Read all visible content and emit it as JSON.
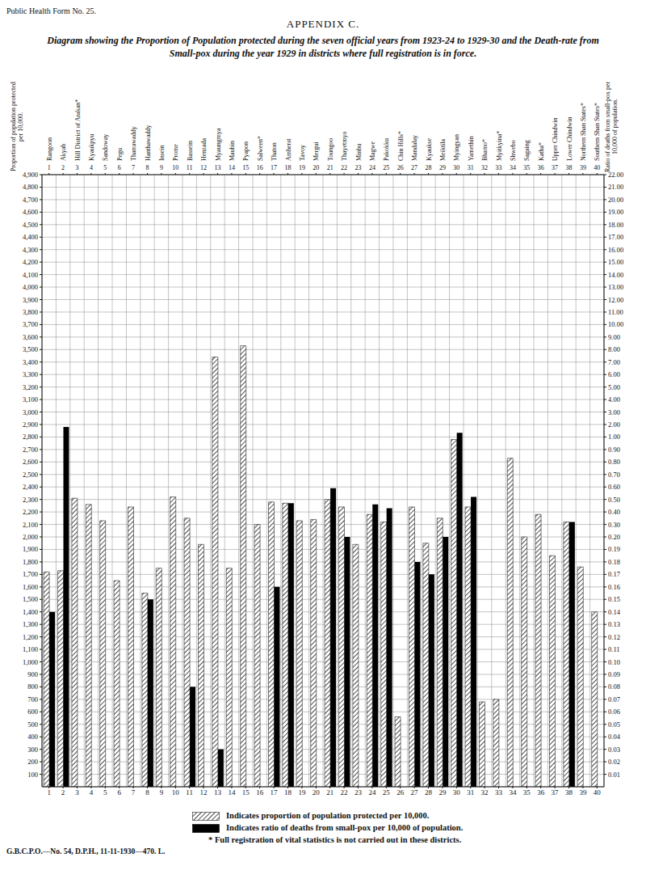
{
  "header": "Public Health Form No. 25.",
  "appendix": "APPENDIX C.",
  "chart_data": {
    "type": "bar",
    "title": "Diagram showing the Proportion of Population protected during the seven official years from 1923-24 to 1929-30 and the Death-rate from Small-pox during the year 1929 in districts where full registration is in force.",
    "categories": [
      "Rangoon",
      "Akyab",
      "Hill District of Arakan*",
      "Kyaukpyu",
      "Sandoway",
      "Pegu",
      "Tharrawaddy",
      "Hanthawaddy",
      "Insein",
      "Prome",
      "Bassein",
      "Henzada",
      "Myaungmya",
      "Maubin",
      "Pyapon",
      "Salween*",
      "Thaton",
      "Amherst",
      "Tavoy",
      "Mergui",
      "Toungoo",
      "Thayetmyo",
      "Minbu",
      "Magwe",
      "Pakokku",
      "Chin Hills*",
      "Mandalay",
      "Kyaukse",
      "Meiktila",
      "Myingyan",
      "Yamethin",
      "Bhamo*",
      "Myitkyina*",
      "Shwebo",
      "Sagaing",
      "Katha*",
      "Upper Chindwin",
      "Lower Chindwin",
      "Northern Shan States*",
      "Southern Shan States*"
    ],
    "column_numbers": [
      1,
      2,
      3,
      4,
      5,
      6,
      7,
      8,
      9,
      10,
      11,
      12,
      13,
      14,
      15,
      16,
      17,
      18,
      19,
      20,
      21,
      22,
      23,
      24,
      25,
      26,
      27,
      28,
      29,
      30,
      31,
      32,
      33,
      34,
      35,
      36,
      37,
      38,
      39,
      40
    ],
    "series": [
      {
        "name": "Indicates proportion of population protected per 10,000.",
        "color": "#222222",
        "values": [
          1720,
          1730,
          2310,
          2260,
          2130,
          1650,
          2240,
          1550,
          1750,
          2320,
          2150,
          1940,
          3440,
          1750,
          3530,
          2100,
          2280,
          2270,
          2130,
          2140,
          2300,
          2240,
          1940,
          2180,
          2120,
          560,
          2240,
          1950,
          2150,
          2780,
          2240,
          680,
          700,
          2630,
          2000,
          2180,
          1850,
          2120,
          1760,
          1400
        ]
      },
      {
        "name": "Indicates ratio of deaths from small-pox per 10,000 of population.",
        "color": "#000000",
        "axis": "y2",
        "values": [
          0.14,
          1.8,
          0,
          0,
          0,
          0,
          0,
          0.15,
          0,
          0,
          0.08,
          0,
          0.03,
          0,
          0,
          0,
          0.16,
          0.47,
          0,
          0,
          0.59,
          0.2,
          0,
          0.46,
          0.43,
          0,
          0.18,
          0.17,
          0.2,
          1.34,
          0.52,
          0,
          0,
          0,
          0,
          0,
          0,
          0.32,
          0,
          0
        ]
      }
    ],
    "y_label": "Proportion of population protected per 10,000.",
    "y2_label": "Ratio of deaths from small-pox per 10,000 of population.",
    "ylim": [
      0,
      4900
    ],
    "yticks": [
      100,
      200,
      300,
      400,
      500,
      600,
      700,
      800,
      900,
      {
        "value": 1000,
        "label": "1,000"
      },
      {
        "value": 1100,
        "label": "1,100"
      },
      {
        "value": 1200,
        "label": "1,200"
      },
      {
        "value": 1300,
        "label": "1,300"
      },
      {
        "value": 1400,
        "label": "1,400"
      },
      {
        "value": 1500,
        "label": "1,500"
      },
      {
        "value": 1600,
        "label": "1,600"
      },
      {
        "value": 1700,
        "label": "1,700"
      },
      {
        "value": 1800,
        "label": "1,800"
      },
      {
        "value": 1900,
        "label": "1,900"
      },
      {
        "value": 2000,
        "label": "2,000"
      },
      {
        "value": 2100,
        "label": "2,100"
      },
      {
        "value": 2200,
        "label": "2,200"
      },
      {
        "value": 2300,
        "label": "2,300"
      },
      {
        "value": 2400,
        "label": "2,400"
      },
      {
        "value": 2500,
        "label": "2,500"
      },
      {
        "value": 2600,
        "label": "2,600"
      },
      {
        "value": 2700,
        "label": "2,700"
      },
      {
        "value": 2800,
        "label": "2,800"
      },
      {
        "value": 2900,
        "label": "2,900"
      },
      {
        "value": 3000,
        "label": "3,000"
      },
      {
        "value": 3100,
        "label": "3,100"
      },
      {
        "value": 3200,
        "label": "3,200"
      },
      {
        "value": 3300,
        "label": "3,300"
      },
      {
        "value": 3400,
        "label": "3,400"
      },
      {
        "value": 3500,
        "label": "3,500"
      },
      {
        "value": 3600,
        "label": "3,600"
      },
      {
        "value": 3700,
        "label": "3,700"
      },
      {
        "value": 3800,
        "label": "3,800"
      },
      {
        "value": 3900,
        "label": "3,900"
      },
      {
        "value": 4000,
        "label": "4,000"
      },
      {
        "value": 4100,
        "label": "4,100"
      },
      {
        "value": 4200,
        "label": "4,200"
      },
      {
        "value": 4300,
        "label": "4,300"
      },
      {
        "value": 4400,
        "label": "4,400"
      },
      {
        "value": 4500,
        "label": "4,500"
      },
      {
        "value": 4600,
        "label": "4,600"
      },
      {
        "value": 4700,
        "label": "4,700"
      },
      {
        "value": 4800,
        "label": "4,800"
      },
      {
        "value": 4900,
        "label": "4,900"
      }
    ],
    "y2lim": [
      0,
      22
    ],
    "y2ticks": [
      {
        "value": 0.01,
        "label": "0.01"
      },
      {
        "value": 0.02,
        "label": "0.02"
      },
      {
        "value": 0.03,
        "label": "0.03"
      },
      {
        "value": 0.04,
        "label": "0.04"
      },
      {
        "value": 0.05,
        "label": "0.05"
      },
      {
        "value": 0.06,
        "label": "0.06"
      },
      {
        "value": 0.07,
        "label": "0.07"
      },
      {
        "value": 0.08,
        "label": "0.08"
      },
      {
        "value": 0.09,
        "label": "0.09"
      },
      {
        "value": 0.1,
        "label": "0.10"
      },
      {
        "value": 0.11,
        "label": "0.11"
      },
      {
        "value": 0.12,
        "label": "0.12"
      },
      {
        "value": 0.13,
        "label": "0.13"
      },
      {
        "value": 0.14,
        "label": "0.14"
      },
      {
        "value": 0.15,
        "label": "0.15"
      },
      {
        "value": 0.16,
        "label": "0.16"
      },
      {
        "value": 0.17,
        "label": "0.17"
      },
      {
        "value": 0.18,
        "label": "0.18"
      },
      {
        "value": 0.19,
        "label": "0.19"
      },
      {
        "value": 0.2,
        "label": "0.20"
      },
      {
        "value": 0.3,
        "label": "0.30"
      },
      {
        "value": 0.4,
        "label": "0.40"
      },
      {
        "value": 0.5,
        "label": "0.50"
      },
      {
        "value": 0.6,
        "label": "0.60"
      },
      {
        "value": 0.7,
        "label": "0.70"
      },
      {
        "value": 0.8,
        "label": "0.80"
      },
      {
        "value": 0.9,
        "label": "0.90"
      },
      {
        "value": 1,
        "label": "1.00"
      },
      {
        "value": 2,
        "label": "2.00"
      },
      {
        "value": 3,
        "label": "3.00"
      },
      {
        "value": 4,
        "label": "4.00"
      },
      {
        "value": 5,
        "label": "5.00"
      },
      {
        "value": 6,
        "label": "6.00"
      },
      {
        "value": 7,
        "label": "7.00"
      },
      {
        "value": 8,
        "label": "8.00"
      },
      {
        "value": 9,
        "label": "9.00"
      },
      {
        "value": 10,
        "label": "10.00"
      },
      {
        "value": 11,
        "label": "11.00"
      },
      {
        "value": 12,
        "label": "12.00"
      },
      {
        "value": 13,
        "label": "13.00"
      },
      {
        "value": 14,
        "label": "14.00"
      },
      {
        "value": 15,
        "label": "15.00"
      },
      {
        "value": 16,
        "label": "16.00"
      },
      {
        "value": 17,
        "label": "17.00"
      },
      {
        "value": 18,
        "label": "18.00"
      },
      {
        "value": 19,
        "label": "19.00"
      },
      {
        "value": 20,
        "label": "20.00"
      },
      {
        "value": 21,
        "label": "21.00"
      },
      {
        "value": 22,
        "label": "22.00"
      }
    ],
    "grid": true
  },
  "note": "* Full registration of vital statistics is not carried out in these districts.",
  "footer": "G.B.C.P.O.—No. 54, D.P.H., 11-11-1930—470. L."
}
